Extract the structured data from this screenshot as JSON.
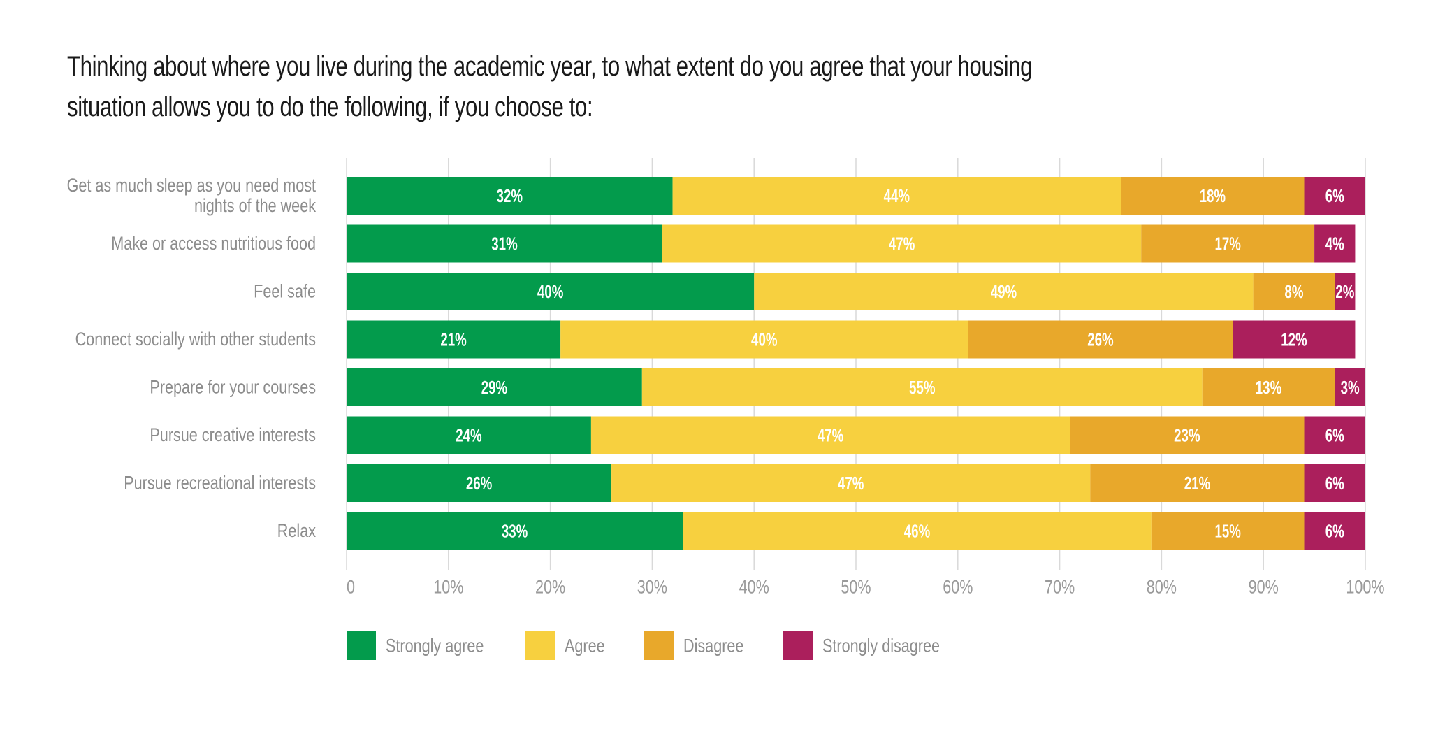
{
  "chart_data": {
    "type": "bar",
    "orientation": "horizontal",
    "stacked": true,
    "title": "Thinking about where you live during the academic year, to what extent do you agree that your housing situation allows you to do the following, if you choose to:",
    "categories": [
      [
        "Get as much sleep as you need most",
        "nights of the week"
      ],
      [
        "Make or access nutritious food"
      ],
      [
        "Feel safe"
      ],
      [
        "Connect socially with other students"
      ],
      [
        "Prepare for your courses"
      ],
      [
        "Pursue creative interests"
      ],
      [
        "Pursue recreational interests"
      ],
      [
        "Relax"
      ]
    ],
    "series": [
      {
        "name": "Strongly agree",
        "color": "#039b4c",
        "values": [
          32,
          31,
          40,
          21,
          29,
          24,
          26,
          33
        ]
      },
      {
        "name": "Agree",
        "color": "#f7d03f",
        "values": [
          44,
          47,
          49,
          40,
          55,
          47,
          47,
          46
        ]
      },
      {
        "name": "Disagree",
        "color": "#e8a82b",
        "values": [
          18,
          17,
          8,
          26,
          13,
          23,
          21,
          15
        ]
      },
      {
        "name": "Strongly disagree",
        "color": "#ab1f5c",
        "values": [
          6,
          4,
          2,
          12,
          3,
          6,
          6,
          6
        ]
      }
    ],
    "xlim": [
      0,
      100
    ],
    "xticks": [
      "0",
      "10%",
      "20%",
      "30%",
      "40%",
      "50%",
      "60%",
      "70%",
      "80%",
      "90%",
      "100%"
    ],
    "value_suffix": "%",
    "grid": true,
    "legend_position": "bottom-left"
  }
}
